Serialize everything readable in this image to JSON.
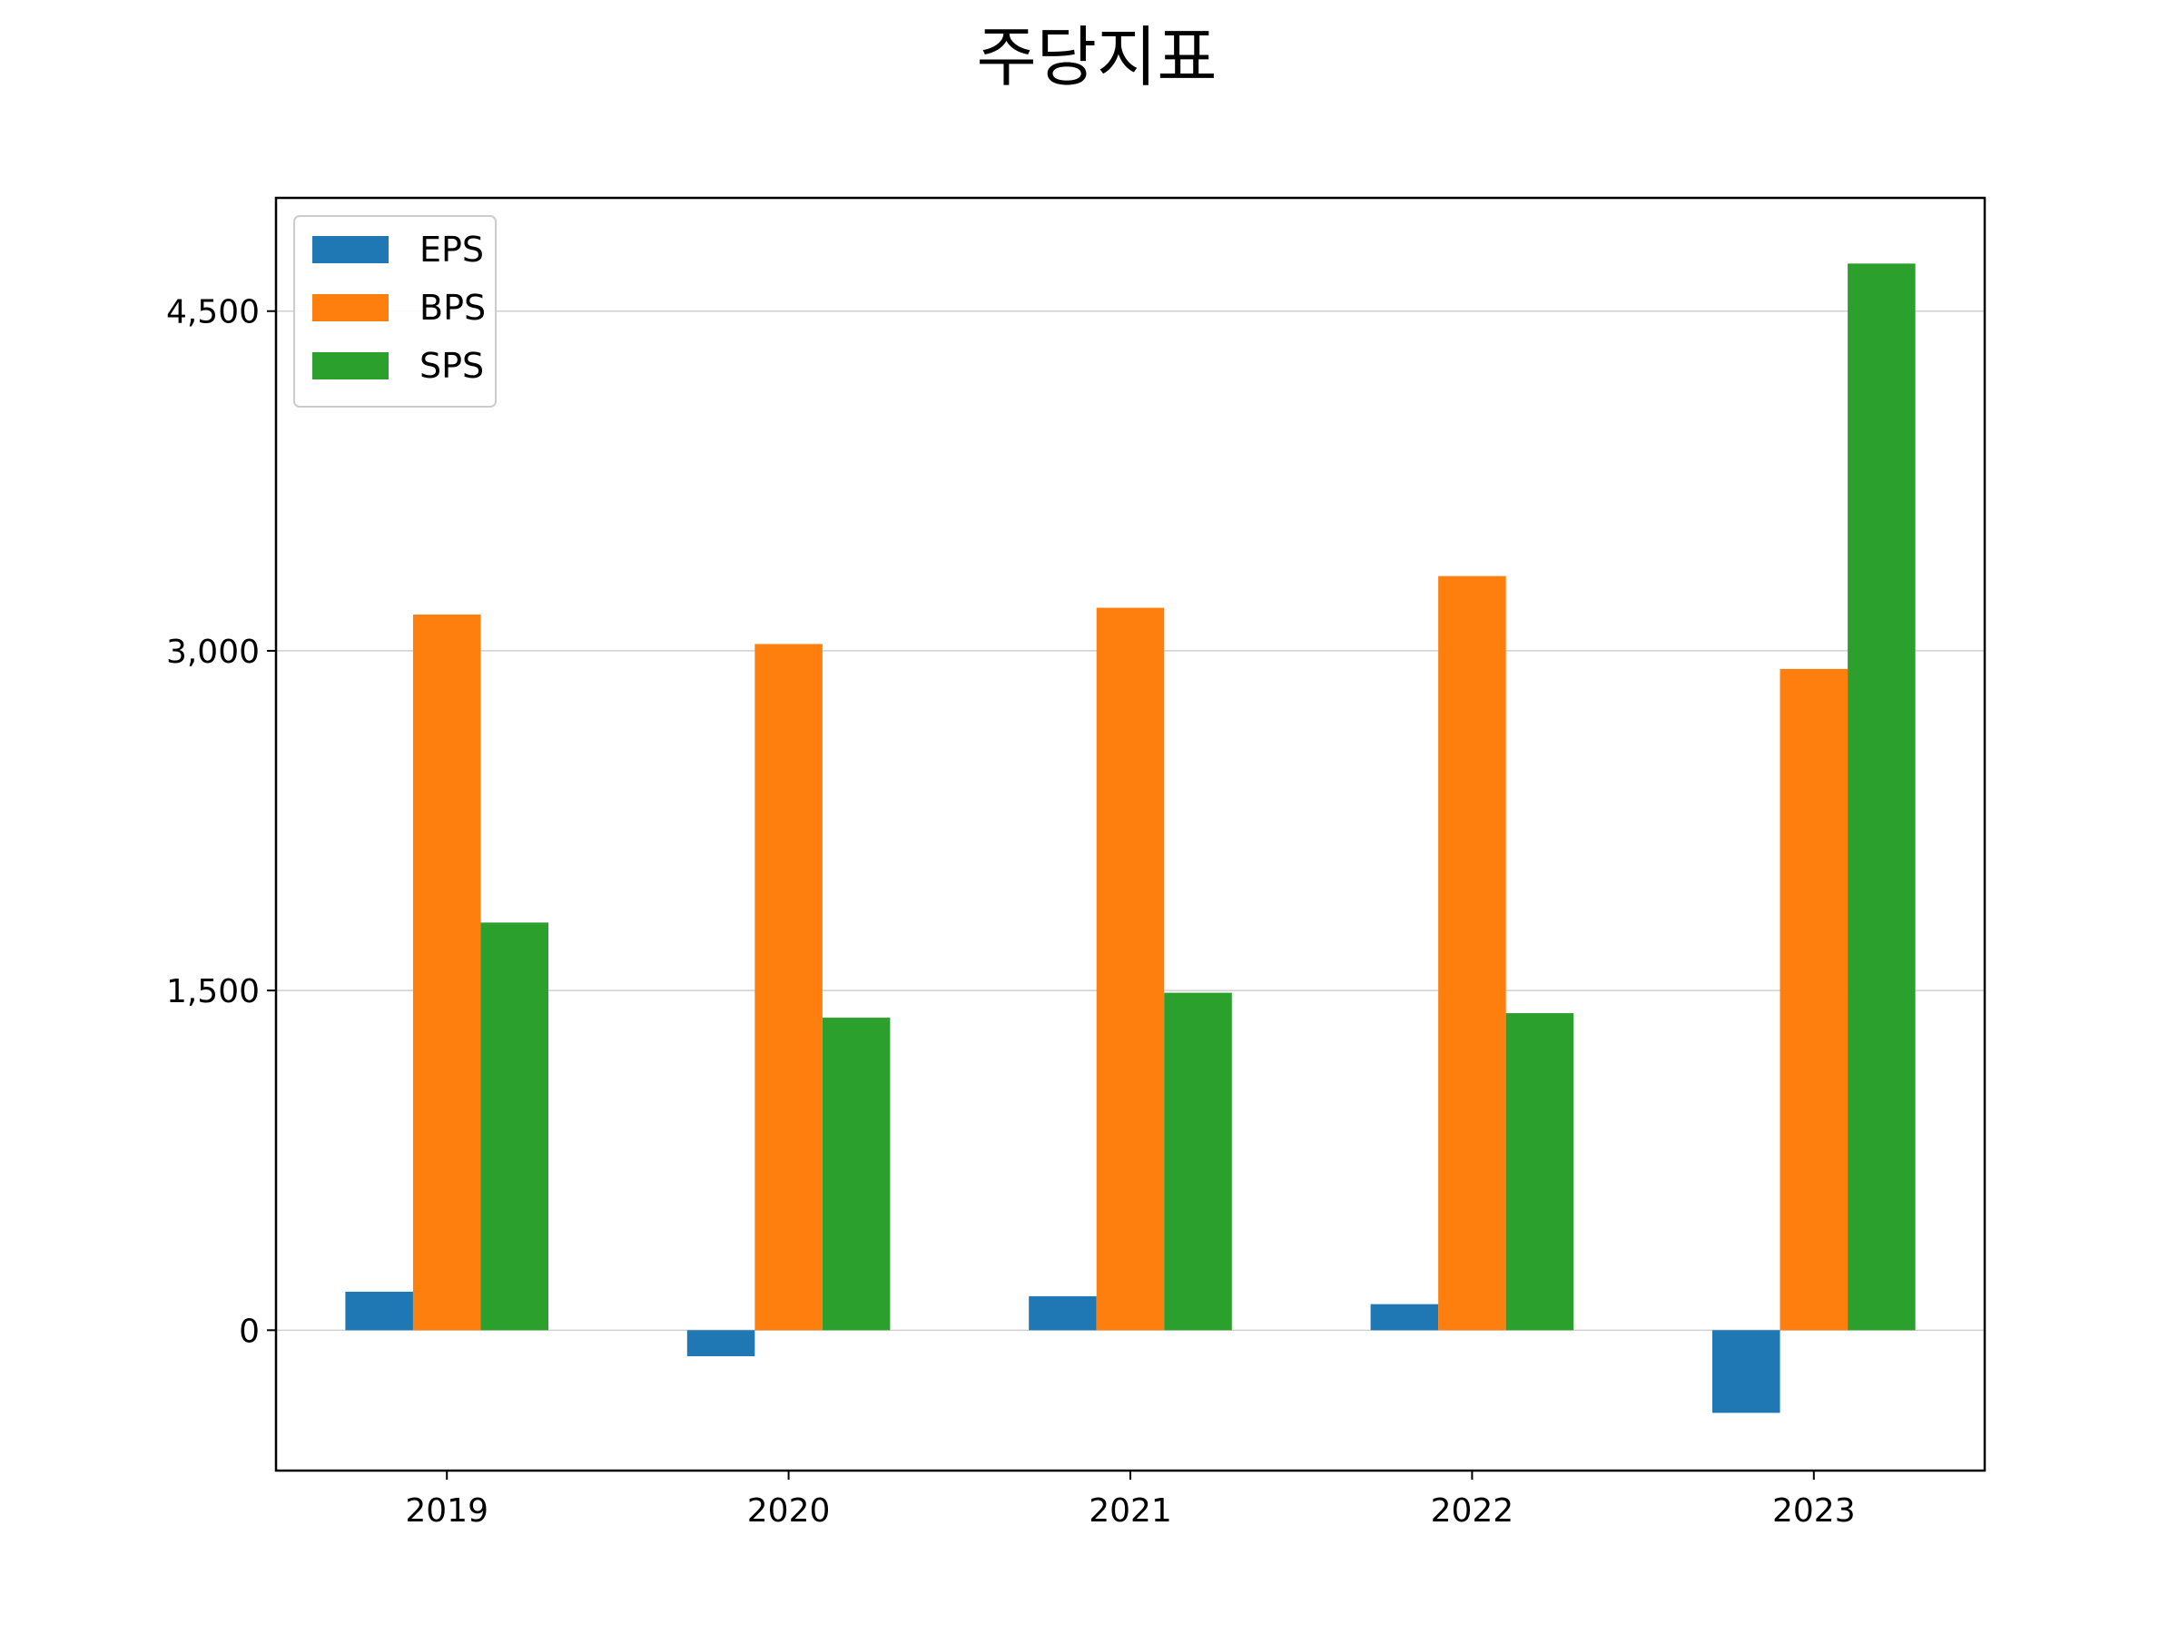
{
  "chart_data": {
    "type": "bar",
    "title": "주당지표",
    "xlabel": "",
    "ylabel": "",
    "categories": [
      "2019",
      "2020",
      "2021",
      "2022",
      "2023"
    ],
    "series": [
      {
        "name": "EPS",
        "color": "#1f77b4",
        "values": [
          170,
          -115,
          150,
          115,
          -365
        ]
      },
      {
        "name": "BPS",
        "color": "#ff7f0e",
        "values": [
          3160,
          3030,
          3190,
          3330,
          2920
        ]
      },
      {
        "name": "SPS",
        "color": "#2ca02c",
        "values": [
          1800,
          1380,
          1490,
          1400,
          4710
        ]
      }
    ],
    "ylim": [
      -620,
      5000
    ],
    "yticks": [
      0,
      1500,
      3000,
      4500
    ],
    "ytick_labels": [
      "0",
      "1,500",
      "3,000",
      "4,500"
    ],
    "grid": "horizontal",
    "legend": "top-left"
  }
}
